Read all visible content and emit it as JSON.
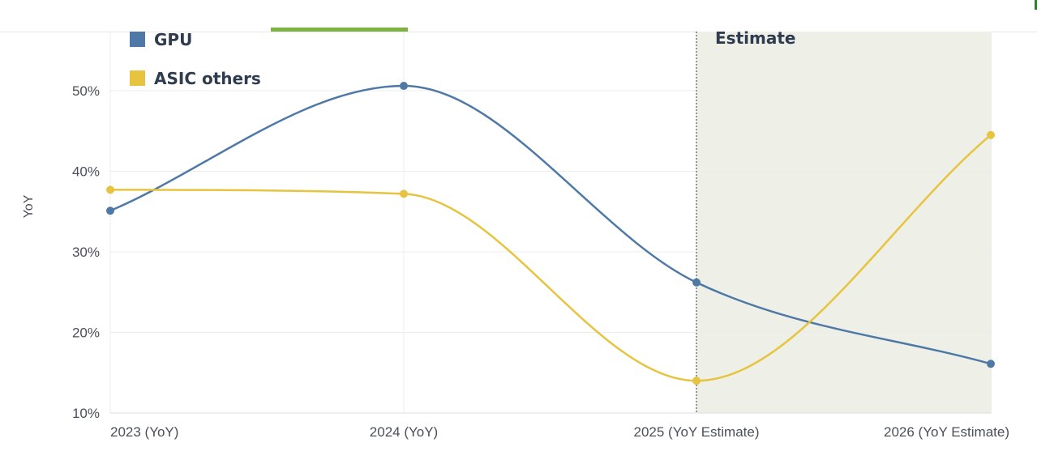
{
  "chart_data": {
    "type": "line",
    "title": "",
    "xlabel": "",
    "ylabel": "YoY",
    "categories": [
      "2023 (YoY)",
      "2024 (YoY)",
      "2025 (YoY Estimate)",
      "2026 (YoY Estimate)"
    ],
    "ylim": [
      10,
      57
    ],
    "yticks": [
      10,
      20,
      30,
      40,
      50
    ],
    "ytick_labels": [
      "10%",
      "20%",
      "30%",
      "40%",
      "50%"
    ],
    "series": [
      {
        "name": "GPU",
        "color": "#4e79a7",
        "values": [
          35.1,
          50.6,
          26.2,
          16.1
        ]
      },
      {
        "name": "ASIC others",
        "color": "#e6c43f",
        "values": [
          37.7,
          37.2,
          14.0,
          44.5
        ]
      }
    ],
    "estimate_region": {
      "label": "Estimate",
      "start_category": "2025 (YoY Estimate)",
      "color": "#eef0e8"
    },
    "legend_position": "top-left"
  }
}
